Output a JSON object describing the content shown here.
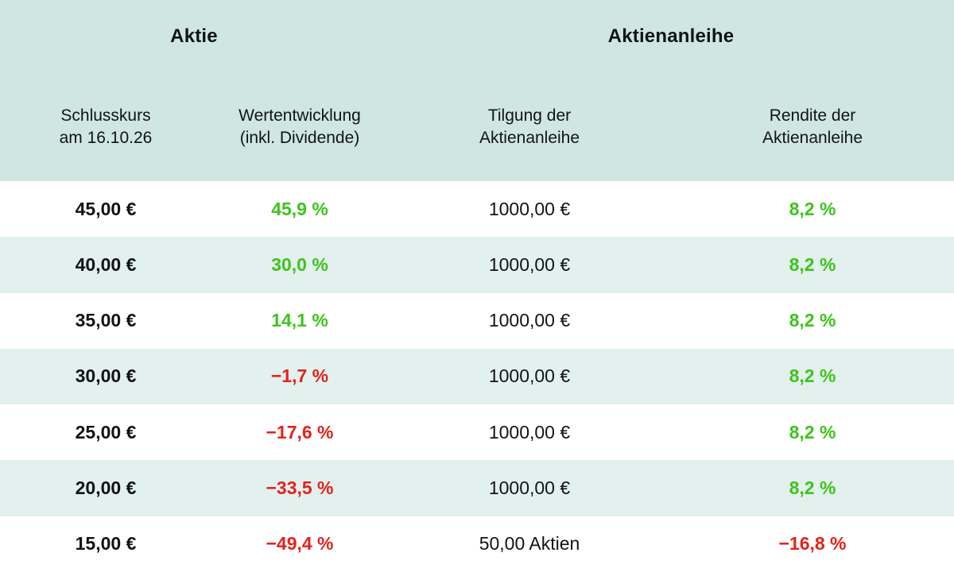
{
  "table": {
    "group_headers": [
      {
        "label": "Aktie"
      },
      {
        "label": "Aktienanleihe"
      }
    ],
    "column_headers": [
      "Schlusskurs\nam 16.10.26",
      "Wertentwicklung\n(inkl. Dividende)",
      "Tilgung der\nAktienanleihe",
      "Rendite der\nAktienanleihe"
    ],
    "rows": [
      {
        "price": "45,00 €",
        "performance": "45,9 %",
        "performance_color": "positive",
        "redemption": "1000,00 €",
        "yield": "8,2 %",
        "yield_color": "positive"
      },
      {
        "price": "40,00 €",
        "performance": "30,0 %",
        "performance_color": "positive",
        "redemption": "1000,00 €",
        "yield": "8,2 %",
        "yield_color": "positive"
      },
      {
        "price": "35,00 €",
        "performance": "14,1 %",
        "performance_color": "positive",
        "redemption": "1000,00 €",
        "yield": "8,2 %",
        "yield_color": "positive"
      },
      {
        "price": "30,00 €",
        "performance": "−1,7 %",
        "performance_color": "negative",
        "redemption": "1000,00 €",
        "yield": "8,2 %",
        "yield_color": "positive"
      },
      {
        "price": "25,00 €",
        "performance": "−17,6 %",
        "performance_color": "negative",
        "redemption": "1000,00 €",
        "yield": "8,2 %",
        "yield_color": "positive"
      },
      {
        "price": "20,00 €",
        "performance": "−33,5 %",
        "performance_color": "negative",
        "redemption": "1000,00 €",
        "yield": "8,2 %",
        "yield_color": "positive"
      },
      {
        "price": "15,00 €",
        "performance": "−49,4 %",
        "performance_color": "negative",
        "redemption": "50,00 Aktien",
        "yield": "−16,8 %",
        "yield_color": "negative"
      }
    ]
  },
  "colors": {
    "positive": "#3dc41c",
    "negative": "#e2231d",
    "header_bg": "#cfe6e3",
    "row_alt_bg": "#e2f0ee",
    "row_bg": "#ffffff",
    "text": "#121414"
  }
}
